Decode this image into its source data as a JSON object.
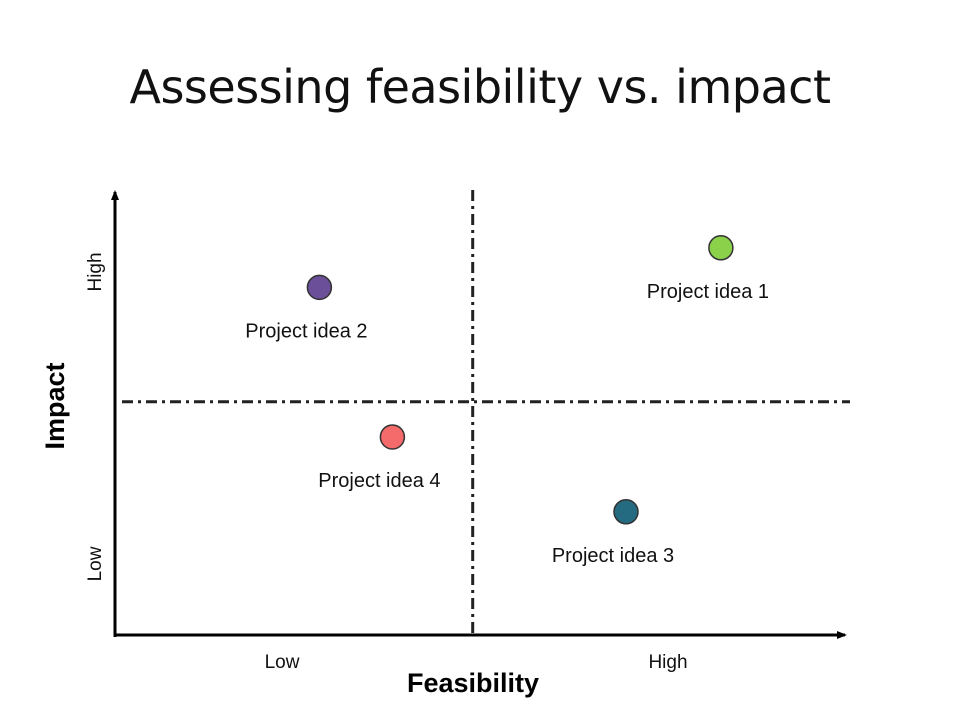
{
  "slide": {
    "title": "Assessing feasibility vs. impact"
  },
  "chart_data": {
    "type": "scatter",
    "xlabel": "Feasibility",
    "ylabel": "Impact",
    "x_ticks": [
      "Low",
      "High"
    ],
    "y_ticks": [
      "Low",
      "High"
    ],
    "xlim": [
      0,
      1
    ],
    "ylim": [
      0,
      1
    ],
    "dividers": {
      "x": 0.49,
      "y": 0.53
    },
    "grid": false,
    "points": [
      {
        "label": "Project idea 1",
        "x": 0.83,
        "y": 0.88,
        "color": "#8bd14a"
      },
      {
        "label": "Project idea 2",
        "x": 0.28,
        "y": 0.79,
        "color": "#6b4f99"
      },
      {
        "label": "Project idea 3",
        "x": 0.7,
        "y": 0.28,
        "color": "#246b82"
      },
      {
        "label": "Project idea 4",
        "x": 0.38,
        "y": 0.45,
        "color": "#f56b6b"
      }
    ]
  }
}
